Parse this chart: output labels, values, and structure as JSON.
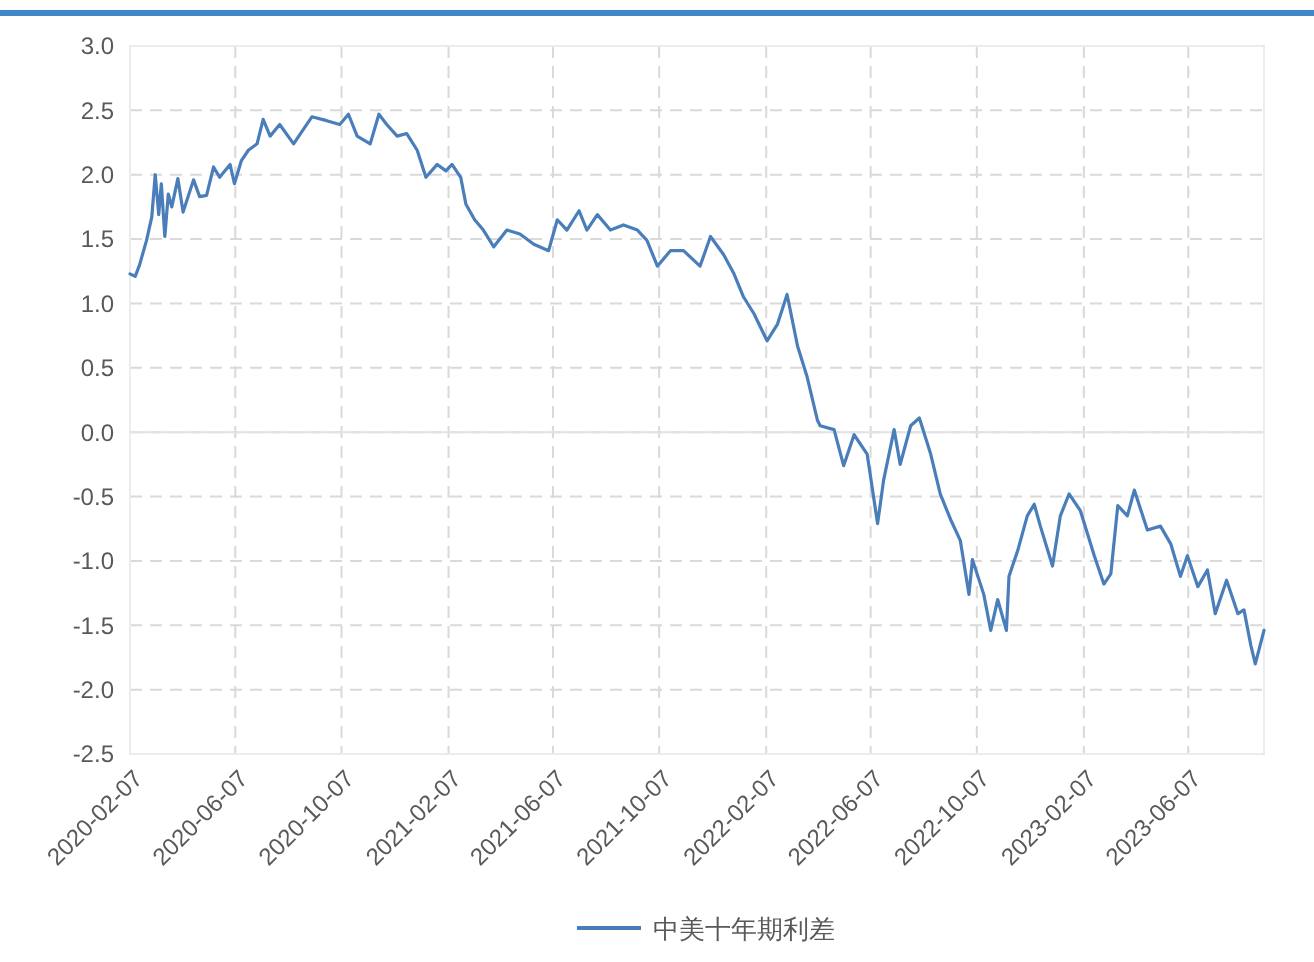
{
  "chart_data": {
    "type": "line",
    "x": [
      "2020-02-07",
      "2020-02-13",
      "2020-02-18",
      "2020-02-26",
      "2020-03-03",
      "2020-03-07",
      "2020-03-11",
      "2020-03-14",
      "2020-03-18",
      "2020-03-22",
      "2020-03-26",
      "2020-04-02",
      "2020-04-08",
      "2020-04-20",
      "2020-04-27",
      "2020-05-05",
      "2020-05-13",
      "2020-05-20",
      "2020-06-01",
      "2020-06-06",
      "2020-06-14",
      "2020-06-22",
      "2020-07-02",
      "2020-07-09",
      "2020-07-17",
      "2020-07-28",
      "2020-08-13",
      "2020-08-24",
      "2020-09-03",
      "2020-09-20",
      "2020-10-05",
      "2020-10-15",
      "2020-10-25",
      "2020-11-09",
      "2020-11-19",
      "2020-11-28",
      "2020-12-10",
      "2020-12-21",
      "2021-01-02",
      "2021-01-12",
      "2021-01-25",
      "2021-02-04",
      "2021-02-11",
      "2021-02-21",
      "2021-02-27",
      "2021-03-09",
      "2021-03-19",
      "2021-03-31",
      "2021-04-15",
      "2021-04-30",
      "2021-05-16",
      "2021-06-02",
      "2021-06-12",
      "2021-06-23",
      "2021-07-07",
      "2021-07-16",
      "2021-07-28",
      "2021-08-12",
      "2021-08-27",
      "2021-09-12",
      "2021-09-23",
      "2021-10-05",
      "2021-10-20",
      "2021-11-04",
      "2021-11-23",
      "2021-12-05",
      "2021-12-20",
      "2022-01-01",
      "2022-01-12",
      "2022-01-24",
      "2022-02-08",
      "2022-02-20",
      "2022-03-03",
      "2022-03-15",
      "2022-03-26",
      "2022-04-07",
      "2022-04-10",
      "2022-04-26",
      "2022-05-07",
      "2022-05-19",
      "2022-06-03",
      "2022-06-15",
      "2022-06-22",
      "2022-07-04",
      "2022-07-11",
      "2022-07-23",
      "2022-08-02",
      "2022-08-15",
      "2022-08-26",
      "2022-09-07",
      "2022-09-18",
      "2022-09-28",
      "2022-10-02",
      "2022-10-15",
      "2022-10-23",
      "2022-10-31",
      "2022-11-10",
      "2022-11-13",
      "2022-11-23",
      "2022-12-04",
      "2022-12-12",
      "2022-12-19",
      "2023-01-02",
      "2023-01-11",
      "2023-01-21",
      "2023-02-03",
      "2023-02-19",
      "2023-03-02",
      "2023-03-10",
      "2023-03-18",
      "2023-03-29",
      "2023-04-06",
      "2023-04-21",
      "2023-05-06",
      "2023-05-18",
      "2023-05-29",
      "2023-06-06",
      "2023-06-18",
      "2023-06-29",
      "2023-07-08",
      "2023-07-21",
      "2023-08-03",
      "2023-08-10",
      "2023-08-18",
      "2023-08-23",
      "2023-09-02"
    ],
    "series": [
      {
        "name": "中美十年期利差",
        "color": "#4a7ebb",
        "values": [
          1.23,
          1.21,
          1.3,
          1.49,
          1.67,
          2.0,
          1.69,
          1.93,
          1.52,
          1.85,
          1.75,
          1.97,
          1.71,
          1.96,
          1.83,
          1.84,
          2.06,
          1.98,
          2.08,
          1.93,
          2.11,
          2.19,
          2.24,
          2.43,
          2.3,
          2.39,
          2.24,
          2.35,
          2.45,
          2.42,
          2.39,
          2.47,
          2.3,
          2.24,
          2.47,
          2.39,
          2.3,
          2.32,
          2.19,
          1.98,
          2.08,
          2.03,
          2.08,
          1.98,
          1.77,
          1.65,
          1.57,
          1.44,
          1.57,
          1.54,
          1.46,
          1.41,
          1.65,
          1.57,
          1.72,
          1.57,
          1.69,
          1.57,
          1.61,
          1.57,
          1.49,
          1.29,
          1.41,
          1.41,
          1.29,
          1.52,
          1.38,
          1.23,
          1.05,
          0.92,
          0.71,
          0.84,
          1.07,
          0.67,
          0.43,
          0.09,
          0.05,
          0.02,
          -0.26,
          -0.02,
          -0.17,
          -0.71,
          -0.37,
          0.02,
          -0.25,
          0.05,
          0.11,
          -0.17,
          -0.48,
          -0.68,
          -0.84,
          -1.26,
          -0.99,
          -1.26,
          -1.54,
          -1.3,
          -1.54,
          -1.12,
          -0.92,
          -0.65,
          -0.56,
          -0.73,
          -1.04,
          -0.65,
          -0.48,
          -0.61,
          -0.96,
          -1.18,
          -1.1,
          -0.57,
          -0.65,
          -0.45,
          -0.76,
          -0.73,
          -0.87,
          -1.12,
          -0.96,
          -1.2,
          -1.07,
          -1.41,
          -1.15,
          -1.41,
          -1.38,
          -1.66,
          -1.8,
          -1.54
        ]
      }
    ],
    "xlim": [
      "2020-02-07",
      "2023-09-02"
    ],
    "xticks": [
      "2020-02-07",
      "2020-06-07",
      "2020-10-07",
      "2021-02-07",
      "2021-06-07",
      "2021-10-07",
      "2022-02-07",
      "2022-06-07",
      "2022-10-07",
      "2023-02-07",
      "2023-06-07"
    ],
    "ylim": [
      -2.5,
      3.0
    ],
    "yticks": [
      {
        "value": -2.5,
        "label": "-2.5"
      },
      {
        "value": -2,
        "label": "-2.0"
      },
      {
        "value": -1.5,
        "label": "-1.5"
      },
      {
        "value": -1,
        "label": "-1.0"
      },
      {
        "value": -0.5,
        "label": "-0.5"
      },
      {
        "value": 0,
        "label": "0.0"
      },
      {
        "value": 0.5,
        "label": "0.5"
      },
      {
        "value": 1,
        "label": "1.0"
      },
      {
        "value": 1.5,
        "label": "1.5"
      },
      {
        "value": 2,
        "label": "2.0"
      },
      {
        "value": 2.5,
        "label": "2.5"
      },
      {
        "value": 3,
        "label": "3.0"
      }
    ],
    "grid": true,
    "legend": "bottom",
    "marker": "none",
    "line_style": "solid"
  }
}
